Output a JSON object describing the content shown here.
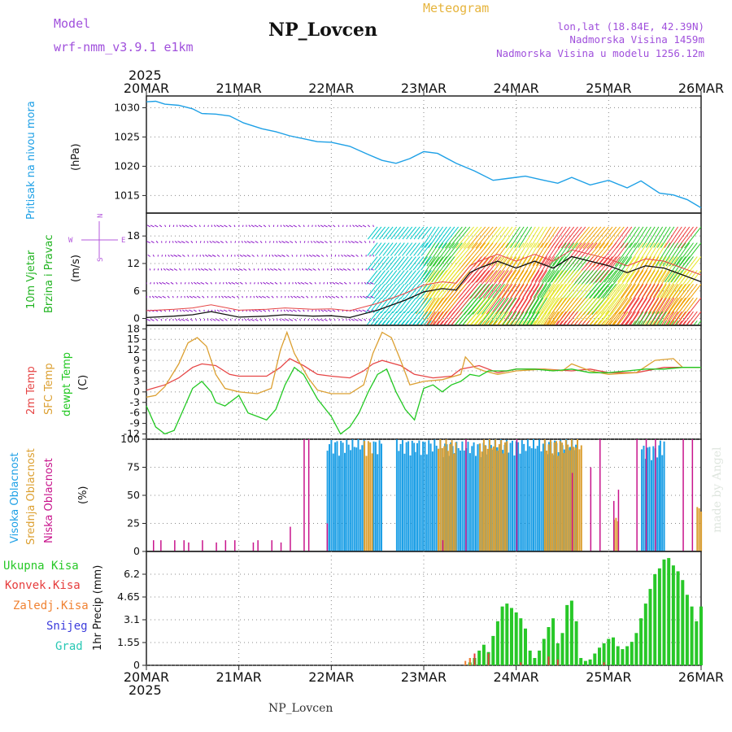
{
  "header": {
    "model_label": "Model",
    "model_value": "wrf-nmm_v3.9.1 e1km",
    "station_title": "NP_Lovcen",
    "meteogram_label": "Meteogram",
    "lonlat": "lon,lat (18.84E, 42.39N)",
    "elevation": "Nadmorska Visina 1459m",
    "model_elevation": "Nadmorska Visina u modelu 1256.12m",
    "year_top": "2025",
    "year_bottom": "2025",
    "footer_station": "NP_Lovcen",
    "watermark": "made by Angel"
  },
  "colors": {
    "pressure": "#1ea0e6",
    "wind_text": "#22b422",
    "wind_dir": "#b45adc",
    "temp_2m": "#e64646",
    "temp_sfc": "#dca032",
    "temp_dew": "#22c822",
    "cloud_high": "#1ea0e6",
    "cloud_mid": "#dca032",
    "cloud_low": "#c8148c",
    "precip_total": "#28c828",
    "precip_conv": "#e63c3c",
    "precip_frz": "#f08232",
    "precip_snow": "#3c3cdc",
    "precip_grad": "#28c8b4",
    "header_purple": "#a050dc",
    "header_orange": "#e6b43c"
  },
  "chart_data": [
    {
      "type": "line",
      "panel": "pressure",
      "ylabel": [
        "Pritisak na nivou mora",
        "(hPa)"
      ],
      "yticks": [
        "1015",
        "1020",
        "1025",
        "1030"
      ],
      "ylim": [
        1012,
        1032
      ],
      "x_categories": [
        "20MAR",
        "21MAR",
        "22MAR",
        "23MAR",
        "24MAR",
        "25MAR",
        "26MAR"
      ],
      "series": [
        {
          "name": "Pritisak na nivou mora",
          "x_days": [
            0,
            0.1,
            0.2,
            0.35,
            0.5,
            0.6,
            0.75,
            0.9,
            1.05,
            1.25,
            1.4,
            1.55,
            1.7,
            1.85,
            2.0,
            2.2,
            2.4,
            2.55,
            2.7,
            2.85,
            3.0,
            3.15,
            3.35,
            3.55,
            3.75,
            3.9,
            4.1,
            4.3,
            4.45,
            4.6,
            4.8,
            5.0,
            5.2,
            5.35,
            5.55,
            5.7,
            5.85,
            6.0
          ],
          "values": [
            1031,
            1031.1,
            1030.6,
            1030.4,
            1029.8,
            1029.0,
            1028.9,
            1028.6,
            1027.4,
            1026.4,
            1025.9,
            1025.2,
            1024.7,
            1024.2,
            1024.1,
            1023.4,
            1022.0,
            1021.0,
            1020.5,
            1021.3,
            1022.5,
            1022.2,
            1020.5,
            1019.2,
            1017.6,
            1017.9,
            1018.3,
            1017.6,
            1017.1,
            1018.1,
            1016.8,
            1017.6,
            1016.3,
            1017.5,
            1015.4,
            1015.1,
            1014.3,
            1012.9
          ]
        }
      ]
    },
    {
      "type": "line",
      "panel": "wind",
      "ylabel": [
        "10m Vjetar",
        "Brzina i Pravac",
        "(m/s)"
      ],
      "direction_key": [
        "N",
        "E",
        "W",
        "S"
      ],
      "yticks": [
        "0",
        "6",
        "12",
        "18"
      ],
      "ylim": [
        -1.5,
        23
      ],
      "series": [
        {
          "name": "10m Vjetar",
          "x_days": [
            0,
            0.3,
            0.5,
            0.7,
            1.0,
            1.3,
            1.5,
            1.8,
            2.0,
            2.2,
            2.5,
            2.8,
            3.0,
            3.2,
            3.35,
            3.5,
            3.6,
            3.8,
            4.0,
            4.2,
            4.4,
            4.6,
            4.8,
            5.0,
            5.2,
            5.4,
            5.6,
            5.8,
            6.0
          ],
          "values": [
            0.2,
            0.5,
            0.8,
            1.5,
            0.3,
            0.5,
            0.8,
            0.5,
            0.6,
            0.2,
            1.8,
            4.0,
            5.8,
            6.5,
            6.2,
            10,
            11,
            12.5,
            11,
            12.5,
            11,
            13.5,
            12.5,
            11.5,
            10,
            11.5,
            11,
            9.5,
            8.0
          ]
        }
      ],
      "barb_palette": [
        "#8c14c8",
        "#8c14c8",
        "#00c8c8",
        "#28c828",
        "#e6e628",
        "#f0a000",
        "#f03c3c"
      ]
    },
    {
      "type": "line",
      "panel": "temperature",
      "ylabel": [
        "2m Temp",
        "SFC Temp",
        "dewpt Temp",
        "(C)"
      ],
      "yticks": [
        "-12",
        "-9",
        "-6",
        "-3",
        "0",
        "3",
        "6",
        "9",
        "12",
        "15",
        "18"
      ],
      "ylim": [
        -13.5,
        19
      ],
      "series": [
        {
          "name": "2m Temp",
          "x_days": [
            0,
            0.2,
            0.35,
            0.5,
            0.6,
            0.75,
            0.9,
            1.0,
            1.3,
            1.45,
            1.55,
            1.7,
            1.85,
            2.0,
            2.2,
            2.35,
            2.45,
            2.55,
            2.75,
            2.9,
            3.1,
            3.3,
            3.4,
            3.6,
            3.8,
            4.0,
            4.3,
            4.6,
            4.8,
            5.0,
            5.3,
            5.6,
            5.8,
            6.0
          ],
          "values": [
            0.5,
            2,
            4,
            7,
            8,
            7.5,
            5,
            4.5,
            4.5,
            7,
            9.5,
            7.5,
            5,
            4.5,
            4,
            6,
            8,
            9,
            7.5,
            5,
            4,
            4.5,
            6.5,
            7.5,
            5.5,
            6.5,
            6.5,
            6,
            6.5,
            5.5,
            5.5,
            7,
            7,
            7
          ]
        },
        {
          "name": "SFC Temp",
          "x_days": [
            0,
            0.1,
            0.2,
            0.35,
            0.45,
            0.55,
            0.65,
            0.75,
            0.85,
            1.0,
            1.2,
            1.35,
            1.45,
            1.52,
            1.6,
            1.75,
            1.85,
            2.0,
            2.2,
            2.35,
            2.45,
            2.55,
            2.65,
            2.75,
            2.85,
            3.0,
            3.2,
            3.4,
            3.45,
            3.55,
            3.65,
            3.8,
            4.0,
            4.3,
            4.5,
            4.6,
            4.8,
            5.0,
            5.3,
            5.5,
            5.7,
            5.8,
            6.0
          ],
          "values": [
            -1.5,
            -1,
            1.5,
            8,
            14,
            15.5,
            13,
            5,
            1,
            0,
            -0.5,
            1,
            12,
            17,
            11,
            4,
            0.5,
            -0.5,
            -0.5,
            2,
            11,
            17,
            15.5,
            9,
            2,
            3,
            3.5,
            5,
            10,
            7,
            6,
            5,
            6,
            6.5,
            6,
            8,
            6,
            5,
            5.5,
            9,
            9.5,
            7,
            7
          ]
        },
        {
          "name": "dewpt Temp",
          "x_days": [
            0,
            0.1,
            0.2,
            0.3,
            0.4,
            0.5,
            0.6,
            0.7,
            0.75,
            0.85,
            1.0,
            1.1,
            1.2,
            1.3,
            1.4,
            1.5,
            1.6,
            1.7,
            1.85,
            2.0,
            2.1,
            2.2,
            2.3,
            2.4,
            2.5,
            2.6,
            2.7,
            2.8,
            2.9,
            3.0,
            3.1,
            3.2,
            3.3,
            3.4,
            3.5,
            3.6,
            3.7,
            3.9,
            4.0,
            4.2,
            4.4,
            4.6,
            4.8,
            5.0,
            5.2,
            5.4,
            5.6,
            5.8,
            6.0
          ],
          "values": [
            -4,
            -10,
            -12,
            -11,
            -5,
            1,
            3,
            0,
            -3,
            -4,
            -1,
            -6,
            -7,
            -8,
            -5,
            2,
            7,
            5,
            -2,
            -7,
            -12,
            -10,
            -6,
            0,
            5,
            6.5,
            0,
            -5,
            -8,
            1,
            2,
            0,
            2,
            3,
            5,
            4.5,
            6,
            6,
            6.5,
            6.5,
            6,
            6.5,
            5.5,
            5.5,
            6,
            6.5,
            6.5,
            7,
            7
          ]
        }
      ]
    },
    {
      "type": "bar",
      "panel": "cloud",
      "ylabel": [
        "Visoka Oblacnost",
        "Srednja Oblacnost",
        "Niska Oblacnost",
        "(%)"
      ],
      "yticks": [
        "0",
        "25",
        "50",
        "75",
        "100"
      ],
      "ylim": [
        0,
        100
      ],
      "series": [
        {
          "name": "Visoka Oblacnost",
          "bands_days": [
            [
              1.95,
              2.35,
              100
            ],
            [
              2.45,
              2.55,
              100
            ],
            [
              2.7,
              2.9,
              100
            ],
            [
              2.9,
              3.2,
              100
            ],
            [
              3.2,
              3.7,
              98
            ],
            [
              3.7,
              4.65,
              100
            ],
            [
              5.35,
              5.55,
              95
            ],
            [
              5.55,
              5.6,
              100
            ]
          ],
          "values": [
            100,
            100,
            100,
            100,
            98,
            100,
            95,
            100
          ]
        },
        {
          "name": "Srednja Oblacnost",
          "bands_days": [
            [
              2.35,
              2.45,
              100
            ],
            [
              3.15,
              3.35,
              100
            ],
            [
              3.6,
              3.9,
              100
            ],
            [
              4.3,
              4.7,
              100
            ],
            [
              5.05,
              5.1,
              30
            ],
            [
              5.95,
              6.0,
              40
            ]
          ],
          "values": [
            100,
            100,
            100,
            100,
            30,
            40
          ]
        },
        {
          "name": "Niska Oblacnost",
          "spikes": [
            [
              0.07,
              10
            ],
            [
              0.15,
              10
            ],
            [
              0.3,
              10
            ],
            [
              0.4,
              10
            ],
            [
              0.45,
              8
            ],
            [
              0.6,
              10
            ],
            [
              0.75,
              8
            ],
            [
              0.85,
              10
            ],
            [
              0.95,
              10
            ],
            [
              1.15,
              8
            ],
            [
              1.2,
              10
            ],
            [
              1.35,
              10
            ],
            [
              1.45,
              8
            ],
            [
              1.55,
              22
            ],
            [
              1.7,
              100
            ],
            [
              1.75,
              100
            ],
            [
              1.95,
              25
            ],
            [
              3.2,
              10
            ],
            [
              3.45,
              100
            ],
            [
              4.0,
              100
            ],
            [
              4.6,
              70
            ],
            [
              4.8,
              75
            ],
            [
              4.9,
              100
            ],
            [
              5.05,
              45
            ],
            [
              5.1,
              55
            ],
            [
              5.3,
              100
            ],
            [
              5.4,
              100
            ],
            [
              5.5,
              100
            ],
            [
              5.8,
              100
            ],
            [
              5.9,
              100
            ]
          ],
          "values": [
            10,
            10,
            10,
            10,
            8,
            10,
            8,
            10,
            10,
            8,
            10,
            10,
            8,
            22,
            100,
            100,
            25,
            10,
            100,
            100,
            70,
            75,
            100,
            45,
            55,
            100,
            100,
            100,
            100,
            100
          ]
        }
      ]
    },
    {
      "type": "bar",
      "panel": "precip",
      "ylabel": [
        "1hr Precip (mm)"
      ],
      "legend": [
        "Ukupna Kisa",
        "Konvek.Kisa",
        "Zaledj.Kisa",
        "Snijeg",
        "Grad"
      ],
      "yticks": [
        "0",
        "1.55",
        "3.1",
        "4.65",
        "6.2"
      ],
      "ylim": [
        0,
        7.75
      ],
      "x_categories": [
        "20MAR",
        "21MAR",
        "22MAR",
        "23MAR",
        "24MAR",
        "25MAR",
        "26MAR"
      ],
      "series": [
        {
          "name": "Ukupna Kisa",
          "x_days": [
            3.5,
            3.55,
            3.6,
            3.65,
            3.7,
            3.75,
            3.8,
            3.85,
            3.9,
            3.95,
            4.0,
            4.05,
            4.1,
            4.15,
            4.2,
            4.25,
            4.3,
            4.35,
            4.4,
            4.45,
            4.5,
            4.55,
            4.6,
            4.65,
            4.7,
            4.75,
            4.8,
            4.85,
            4.9,
            4.95,
            5.0,
            5.05,
            5.1,
            5.15,
            5.2,
            5.25,
            5.3,
            5.35,
            5.4,
            5.45,
            5.5,
            5.55,
            5.6,
            5.65,
            5.7,
            5.75,
            5.8,
            5.85,
            5.9,
            5.95,
            6.0
          ],
          "values": [
            0.2,
            0.5,
            1.0,
            1.4,
            0.9,
            2.0,
            3.0,
            4.0,
            4.2,
            3.9,
            3.6,
            3.2,
            2.5,
            1.0,
            0.5,
            1.0,
            1.8,
            2.6,
            3.2,
            1.5,
            2.2,
            4.1,
            4.4,
            3.0,
            0.5,
            0.3,
            0.4,
            0.8,
            1.2,
            1.5,
            1.8,
            1.9,
            1.3,
            1.1,
            1.3,
            1.6,
            2.2,
            3.2,
            4.2,
            5.2,
            6.2,
            6.6,
            7.2,
            7.3,
            6.8,
            6.4,
            5.8,
            4.8,
            4.0,
            3.0,
            4.0
          ]
        },
        {
          "name": "Konvek.Kisa",
          "x_days": [
            3.5,
            3.55,
            3.7,
            4.05,
            4.35,
            4.45,
            4.95
          ],
          "values": [
            0.5,
            0.8,
            0.8,
            0.2,
            0.6,
            0.4,
            0.2
          ]
        },
        {
          "name": "Zaledj.Kisa",
          "x_days": [
            3.45,
            3.5
          ],
          "values": [
            0.3,
            0.5
          ]
        }
      ]
    }
  ]
}
